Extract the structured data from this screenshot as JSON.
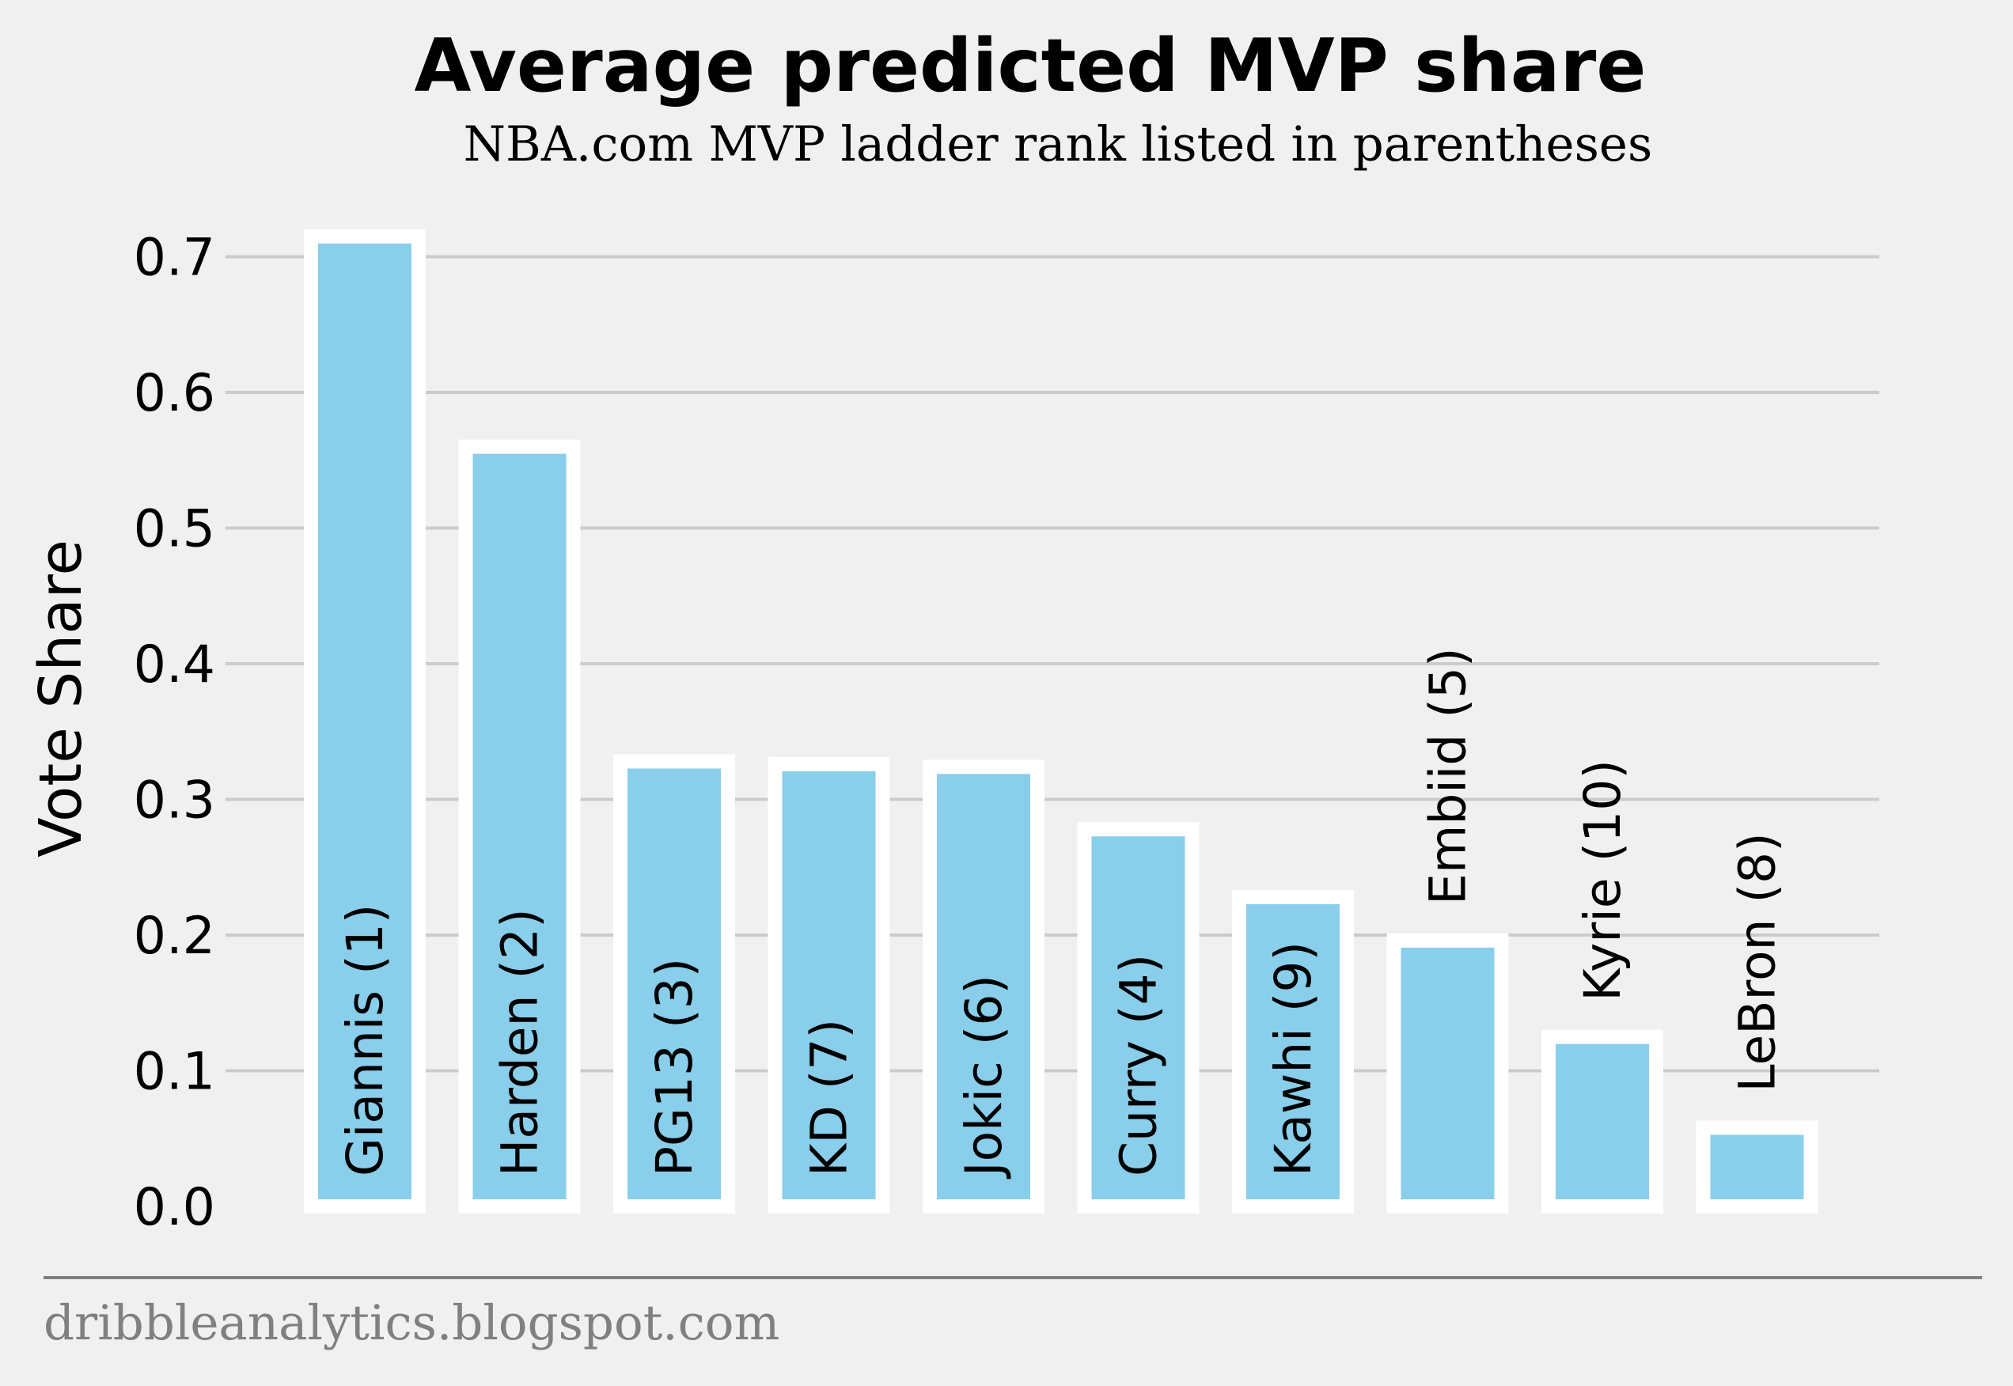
{
  "chart_data": {
    "type": "bar",
    "title": "Average predicted MVP share",
    "subtitle": "NBA.com MVP ladder rank listed in parentheses",
    "xlabel": "",
    "ylabel": "Vote Share",
    "ylim": [
      0,
      0.72
    ],
    "yticks": [
      "0.0",
      "0.1",
      "0.2",
      "0.3",
      "0.4",
      "0.5",
      "0.6",
      "0.7"
    ],
    "categories": [
      "Giannis (1)",
      "Harden (2)",
      "PG13 (3)",
      "KD (7)",
      "Jokic (6)",
      "Curry (4)",
      "Kawhi (9)",
      "Embiid (5)",
      "Kyrie (10)",
      "LeBron (8)"
    ],
    "values": [
      0.715,
      0.56,
      0.328,
      0.326,
      0.324,
      0.278,
      0.228,
      0.196,
      0.125,
      0.058
    ],
    "grid": true,
    "legend": "none",
    "bar_color": "#89ceeb",
    "bar_edge_color": "#ffffff",
    "background": "#f0f0f0",
    "grid_color": "#cbcbcb"
  },
  "footer": "dribbleanalytics.blogspot.com"
}
